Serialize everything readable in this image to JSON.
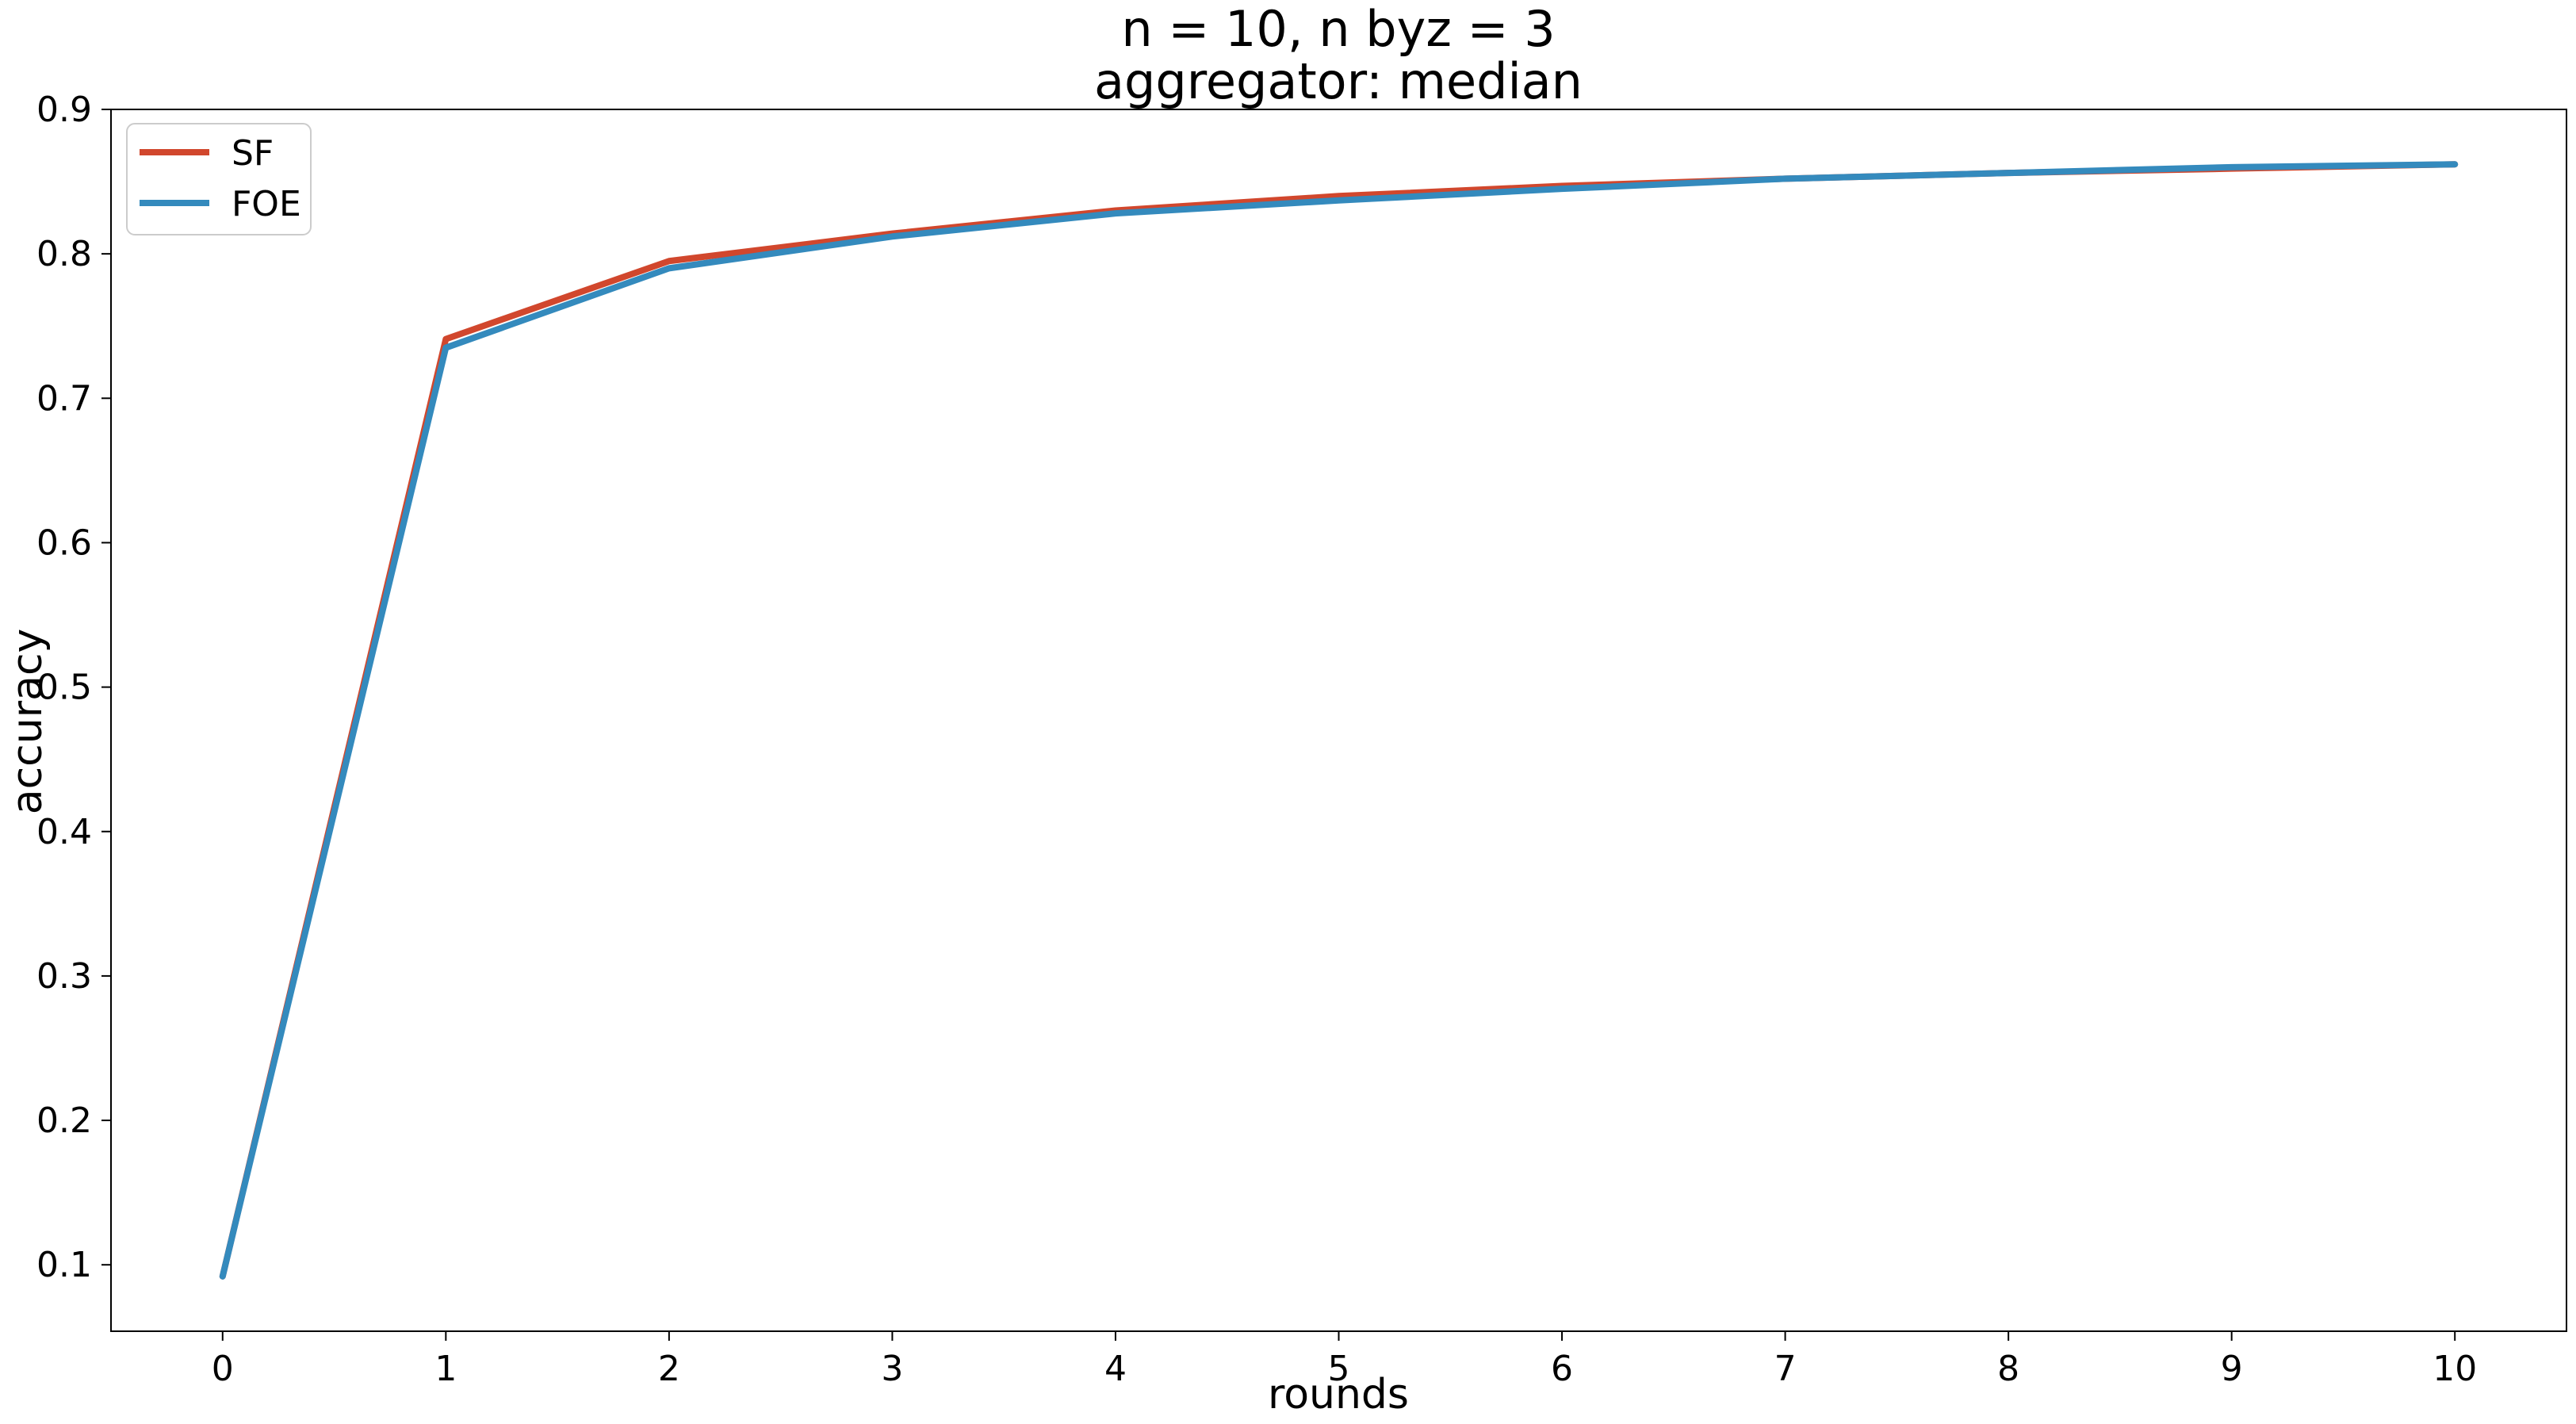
{
  "chart_data": {
    "type": "line",
    "title": "n = 10, n byz = 3",
    "subtitle": "aggregator: median",
    "xlabel": "rounds",
    "ylabel": "accuracy",
    "xlim": [
      -0.5,
      10.5
    ],
    "ylim": [
      0.054,
      0.9
    ],
    "xticks": [
      0,
      1,
      2,
      3,
      4,
      5,
      6,
      7,
      8,
      9,
      10
    ],
    "yticks": [
      0.1,
      0.2,
      0.3,
      0.4,
      0.5,
      0.6,
      0.7,
      0.8,
      0.9
    ],
    "grid": false,
    "legend_position": "upper left",
    "x": [
      0,
      1,
      2,
      3,
      4,
      5,
      6,
      7,
      8,
      9,
      10
    ],
    "series": [
      {
        "name": "SF",
        "color": "#d1472d",
        "values": [
          0.092,
          0.741,
          0.795,
          0.814,
          0.83,
          0.84,
          0.847,
          0.852,
          0.856,
          0.859,
          0.862
        ]
      },
      {
        "name": "FOE",
        "color": "#348abd",
        "values": [
          0.092,
          0.735,
          0.79,
          0.812,
          0.828,
          0.837,
          0.845,
          0.852,
          0.856,
          0.86,
          0.862
        ]
      }
    ]
  }
}
